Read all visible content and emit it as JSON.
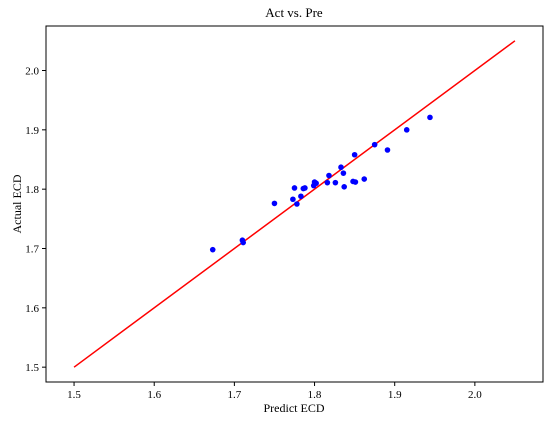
{
  "chart_data": {
    "type": "scatter",
    "title": "Act vs. Pre",
    "xlabel": "Predict ECD",
    "ylabel": "Actual ECD",
    "xlim": [
      1.465,
      2.085
    ],
    "ylim": [
      1.475,
      2.075
    ],
    "grid": false,
    "x_ticks": [
      "1.5",
      "1.6",
      "1.7",
      "1.8",
      "1.9",
      "2.0"
    ],
    "y_ticks": [
      "1.5",
      "1.6",
      "1.7",
      "1.8",
      "1.9",
      "2.0"
    ],
    "colors": {
      "points": "#0000ff",
      "line": "#ff0000"
    },
    "reference_line": {
      "x": [
        1.5,
        2.05
      ],
      "y": [
        1.5,
        2.05
      ]
    },
    "series": [
      {
        "x": [
          1.673,
          1.71,
          1.711,
          1.75,
          1.773,
          1.775,
          1.778,
          1.783,
          1.786,
          1.788,
          1.799,
          1.8,
          1.802,
          1.816,
          1.818,
          1.826,
          1.833,
          1.836,
          1.837,
          1.848,
          1.85,
          1.851,
          1.862,
          1.875,
          1.891,
          1.915,
          1.944
        ],
        "y": [
          1.698,
          1.714,
          1.71,
          1.776,
          1.783,
          1.802,
          1.775,
          1.788,
          1.801,
          1.802,
          1.806,
          1.812,
          1.81,
          1.811,
          1.823,
          1.811,
          1.837,
          1.827,
          1.804,
          1.813,
          1.858,
          1.812,
          1.817,
          1.875,
          1.866,
          1.9,
          1.921
        ]
      }
    ]
  }
}
